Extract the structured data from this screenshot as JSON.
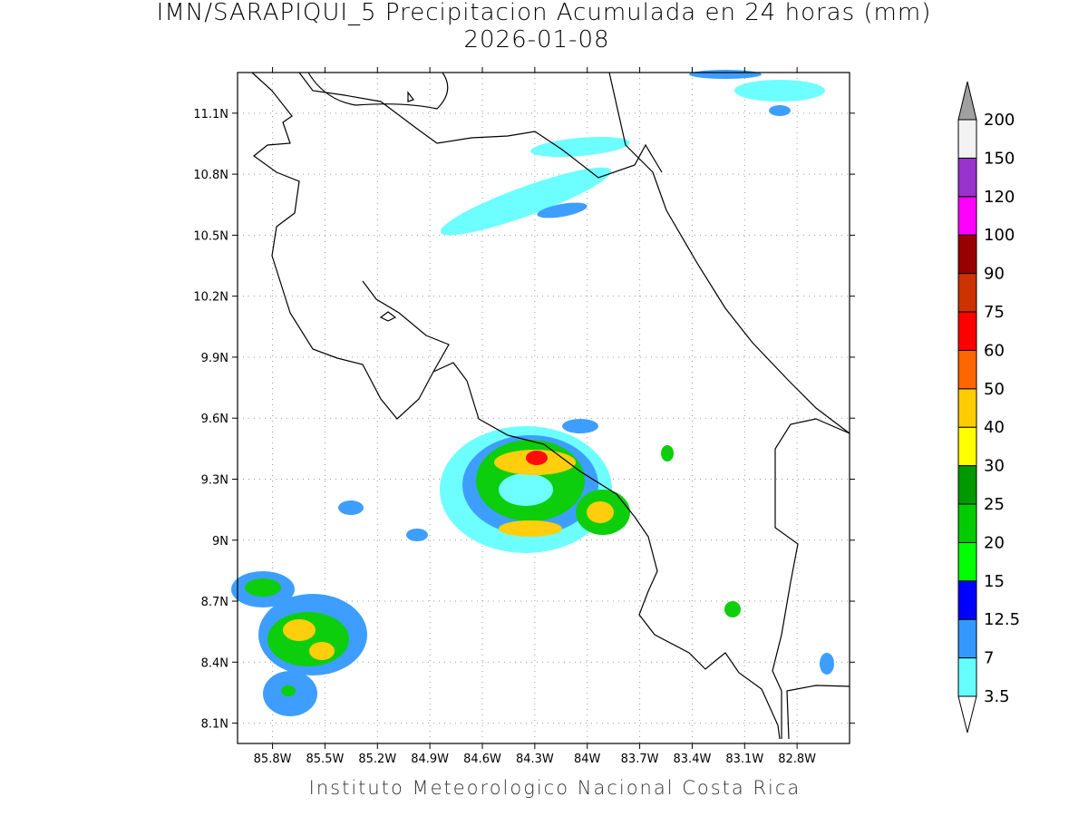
{
  "title": "IMN/SARAPIQUI_5 Precipitacion Acumulada en 24 horas (mm)",
  "subtitle": "2026-01-08",
  "footer": "Instituto Meteorologico Nacional Costa Rica",
  "map": {
    "latlim": [
      8.0,
      11.3
    ],
    "lonlim": [
      -86.0,
      -82.5
    ],
    "grid": true,
    "lat_ticks": [
      {
        "value": 11.1,
        "label": "11.1N"
      },
      {
        "value": 10.8,
        "label": "10.8N"
      },
      {
        "value": 10.5,
        "label": "10.5N"
      },
      {
        "value": 10.2,
        "label": "10.2N"
      },
      {
        "value": 9.9,
        "label": "9.9N"
      },
      {
        "value": 9.6,
        "label": "9.6N"
      },
      {
        "value": 9.3,
        "label": "9.3N"
      },
      {
        "value": 9.0,
        "label": "9N"
      },
      {
        "value": 8.7,
        "label": "8.7N"
      },
      {
        "value": 8.4,
        "label": "8.4N"
      },
      {
        "value": 8.1,
        "label": "8.1N"
      }
    ],
    "lon_ticks": [
      {
        "value": -85.8,
        "label": "85.8W"
      },
      {
        "value": -85.5,
        "label": "85.5W"
      },
      {
        "value": -85.2,
        "label": "85.2W"
      },
      {
        "value": -84.9,
        "label": "84.9W"
      },
      {
        "value": -84.6,
        "label": "84.6W"
      },
      {
        "value": -84.3,
        "label": "84.3W"
      },
      {
        "value": -84.0,
        "label": "84W"
      },
      {
        "value": -83.7,
        "label": "83.7W"
      },
      {
        "value": -83.4,
        "label": "83.4W"
      },
      {
        "value": -83.1,
        "label": "83.1W"
      },
      {
        "value": -82.8,
        "label": "82.8W"
      }
    ]
  },
  "colorbar": {
    "levels": [
      3.5,
      7,
      12.5,
      15,
      20,
      25,
      30,
      40,
      50,
      60,
      75,
      90,
      100,
      120,
      150,
      200
    ],
    "colors": [
      "#66ffff",
      "#3399ff",
      "#0000ff",
      "#00ff00",
      "#00cc00",
      "#009900",
      "#ffff00",
      "#ffcc00",
      "#ff6600",
      "#ff0000",
      "#cc3300",
      "#990000",
      "#ff00ff",
      "#9933cc",
      "#f2f2f2"
    ],
    "under_color": "#ffffff",
    "over_color": "#a0a0a0"
  }
}
